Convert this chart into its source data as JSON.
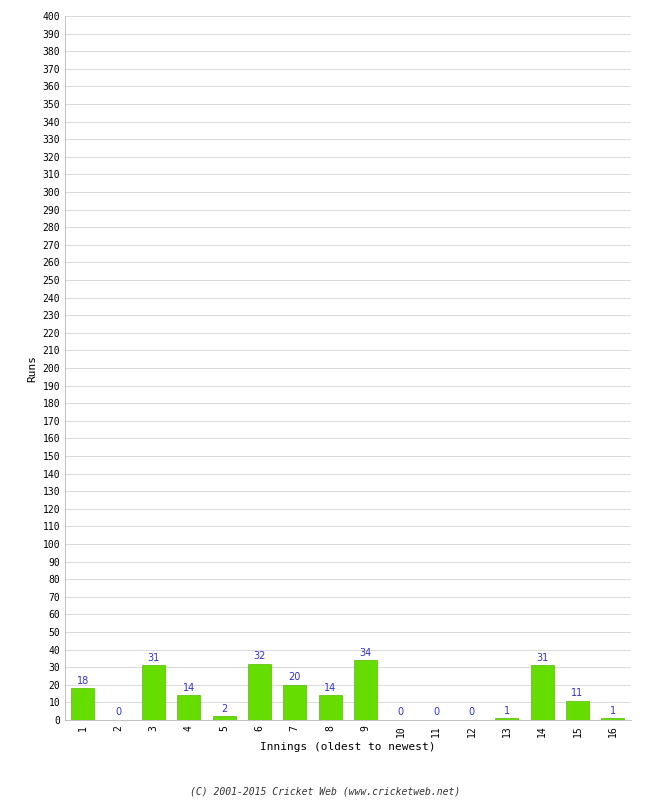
{
  "xlabel": "Innings (oldest to newest)",
  "ylabel": "Runs",
  "categories": [
    "1",
    "2",
    "3",
    "4",
    "5",
    "6",
    "7",
    "8",
    "9",
    "10",
    "11",
    "12",
    "13",
    "14",
    "15",
    "16"
  ],
  "values": [
    18,
    0,
    31,
    14,
    2,
    32,
    20,
    14,
    34,
    0,
    0,
    0,
    1,
    31,
    11,
    1
  ],
  "bar_color": "#66dd00",
  "bar_edge_color": "#55bb00",
  "label_color": "#3333cc",
  "ylim": [
    0,
    400
  ],
  "ytick_step": 10,
  "background_color": "#ffffff",
  "grid_color": "#cccccc",
  "footer": "(C) 2001-2015 Cricket Web (www.cricketweb.net)"
}
